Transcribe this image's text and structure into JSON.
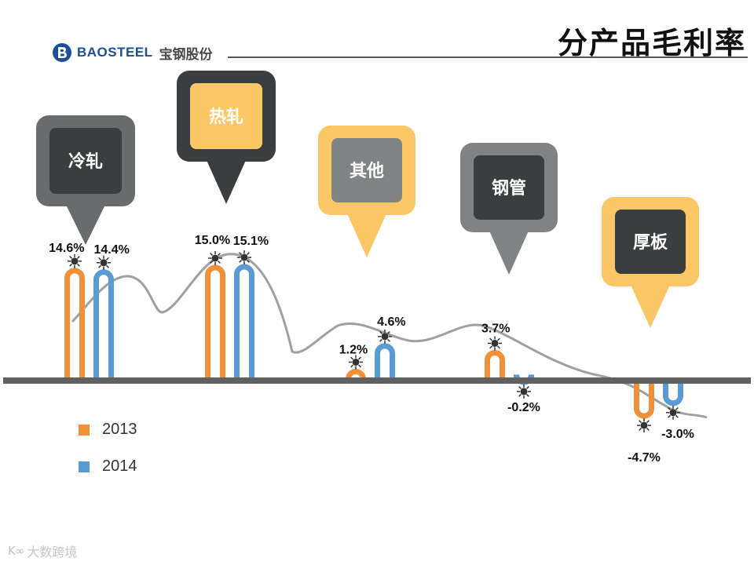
{
  "header": {
    "logo_en": "BAOSTEEL",
    "logo_cn": "宝钢股份",
    "title": "分产品毛利率"
  },
  "watermark": {
    "icon_text": "K∞",
    "text": "大数跨境"
  },
  "colors": {
    "series_2013": "#f0913a",
    "series_2014": "#5b9bd5",
    "baseline": "#606060",
    "trend": "#a0a0a0",
    "callout_dark": "#3a3e3e",
    "callout_yellow": "#fbc766",
    "callout_gray": "#7f8383",
    "callout_mid": "#686c6c"
  },
  "chart_data": {
    "type": "bar",
    "title": "分产品毛利率",
    "categories": [
      "冷轧",
      "热轧",
      "其他",
      "钢管",
      "厚板"
    ],
    "series": [
      {
        "name": "2013",
        "values": [
          14.6,
          15.0,
          1.2,
          3.7,
          -4.7
        ],
        "labels": [
          "14.6%",
          "15.0%",
          "1.2%",
          "3.7%",
          "-4.7%"
        ]
      },
      {
        "name": "2014",
        "values": [
          14.4,
          15.1,
          4.6,
          -0.2,
          -3.0
        ],
        "labels": [
          "14.4%",
          "15.1%",
          "4.6%",
          "-0.2%",
          "-3.0%"
        ]
      }
    ],
    "ylim": [
      -6,
      16
    ],
    "xlabel": "",
    "ylabel": "",
    "legend": "bottom-left",
    "trend_line": true,
    "callouts": [
      {
        "category": "冷轧",
        "outer": "callout_mid",
        "inner": "callout_dark",
        "text": "text_light"
      },
      {
        "category": "热轧",
        "outer": "callout_dark",
        "inner": "callout_yellow",
        "text": "text_light"
      },
      {
        "category": "其他",
        "outer": "callout_yellow",
        "inner": "callout_gray",
        "text": "text_light"
      },
      {
        "category": "钢管",
        "outer": "callout_gray",
        "inner": "callout_dark",
        "text": "text_light"
      },
      {
        "category": "厚板",
        "outer": "callout_yellow",
        "inner": "callout_dark",
        "text": "text_light"
      }
    ]
  }
}
